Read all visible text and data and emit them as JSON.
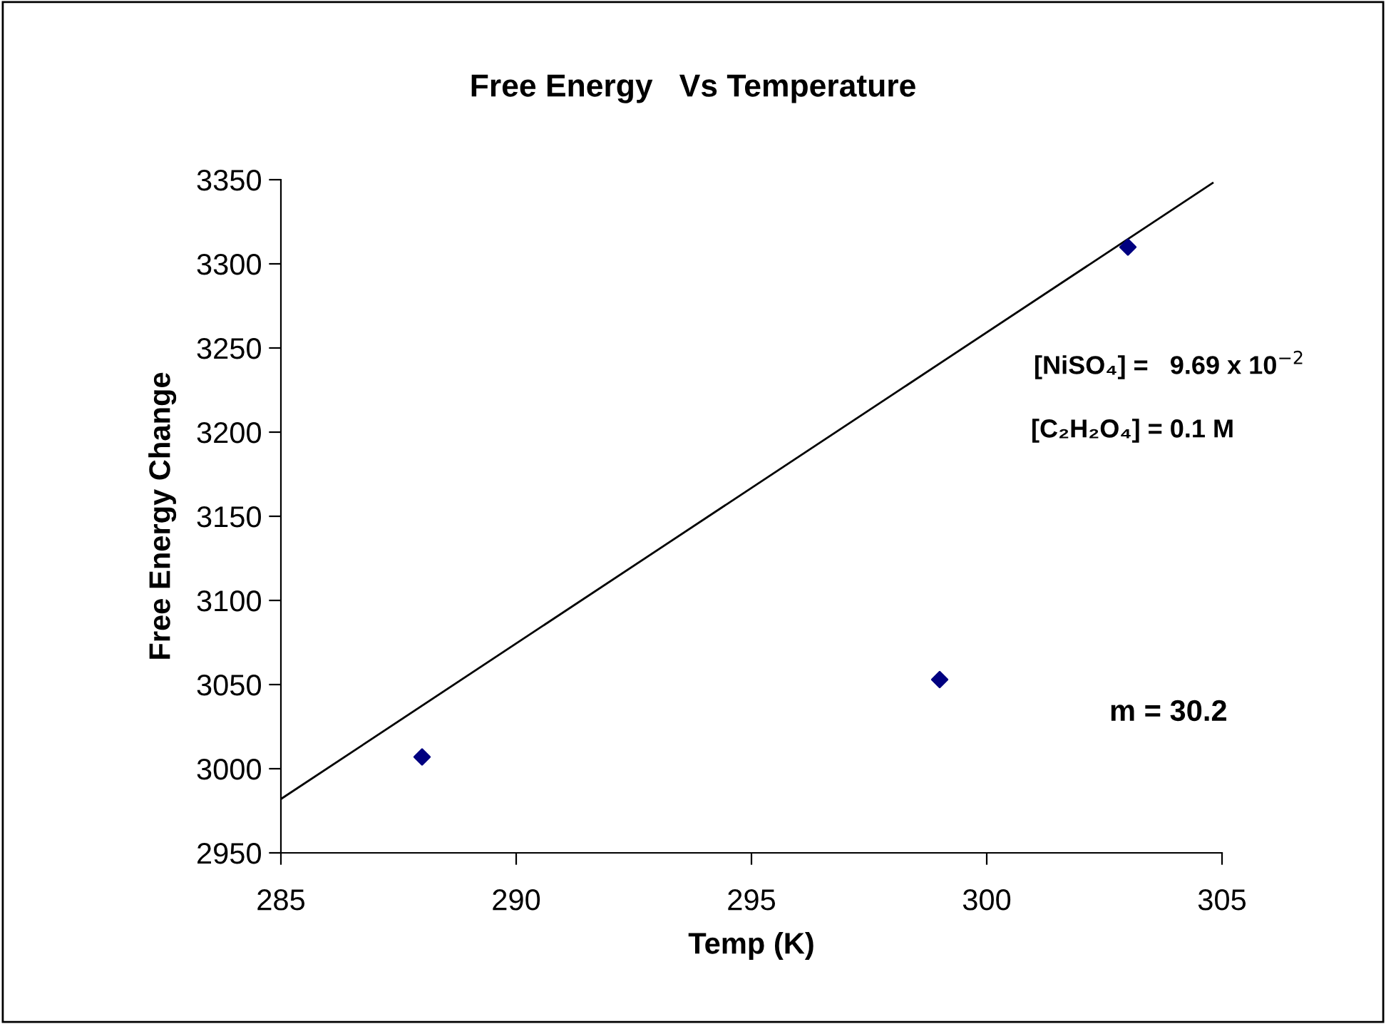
{
  "chart_data": {
    "type": "scatter",
    "title": "Free Energy   Vs Temperature",
    "xlabel": "Temp (K)",
    "ylabel": "Free Energy Change",
    "xlim": [
      285,
      305
    ],
    "xticks": [
      285,
      290,
      295,
      300,
      305
    ],
    "ylim": [
      2950,
      3350
    ],
    "yticks": [
      2950,
      3000,
      3050,
      3100,
      3150,
      3200,
      3250,
      3300,
      3350
    ],
    "grid": false,
    "legend": false,
    "series": [
      {
        "color": "#000080",
        "marker": "diamond",
        "x": [
          288,
          299,
          303
        ],
        "values": [
          3007,
          3053,
          3310
        ]
      },
      {
        "type": "line",
        "color": "#000000",
        "line_style": "solid",
        "x": [
          285,
          304.8
        ],
        "values": [
          2982,
          3348
        ]
      }
    ],
    "annotations": [
      "[NiSO₄] =   9.69 x 10$^{−2}$",
      "[C₂H₂O₄] = 0.1 M",
      "m = 30.2"
    ]
  }
}
